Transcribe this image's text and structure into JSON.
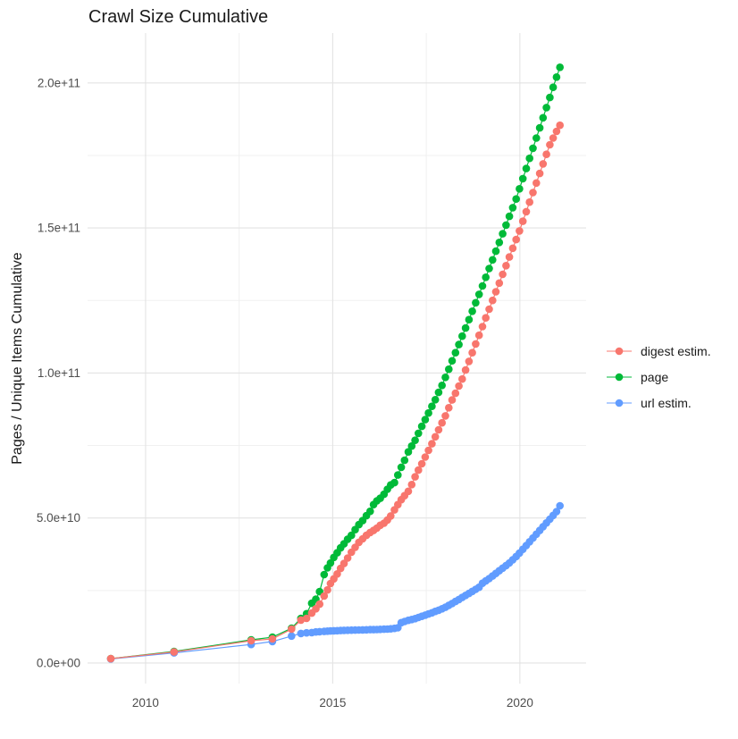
{
  "chart_data": {
    "type": "scatter",
    "title": "Crawl Size Cumulative",
    "xlabel": "",
    "ylabel": "Pages / Unique Items Cumulative",
    "legend_position": "right",
    "grid": true,
    "x_domain": [
      2008.45,
      2021.77
    ],
    "y_domain_e9": [
      -7.1,
      217.2
    ],
    "x_ticks": [
      {
        "value": 2010,
        "label": "2010"
      },
      {
        "value": 2015,
        "label": "2015"
      },
      {
        "value": 2020,
        "label": "2020"
      }
    ],
    "x_minor_ticks": [
      2012.5,
      2017.5
    ],
    "y_ticks": [
      {
        "value_e9": 0,
        "label": "0.0e+00"
      },
      {
        "value_e9": 50,
        "label": "5.0e+10"
      },
      {
        "value_e9": 100,
        "label": "1.0e+11"
      },
      {
        "value_e9": 150,
        "label": "1.5e+11"
      },
      {
        "value_e9": 200,
        "label": "2.0e+11"
      }
    ],
    "y_minor_ticks_e9": [
      25,
      75,
      125,
      175
    ],
    "y_unit": "value_e9 means pages x 1e9",
    "draw_order": [
      "page",
      "url estim.",
      "digest estim."
    ],
    "series": [
      {
        "name": "digest estim.",
        "color": "#F8766D",
        "points_e9": [
          [
            2009.07,
            1.5
          ],
          [
            2010.76,
            3.8
          ],
          [
            2012.82,
            7.7
          ],
          [
            2013.39,
            8.3
          ],
          [
            2013.9,
            11.7
          ],
          [
            2014.15,
            14.8
          ],
          [
            2014.3,
            15.4
          ],
          [
            2014.44,
            17.2
          ],
          [
            2014.55,
            18.7
          ],
          [
            2014.65,
            20.3
          ],
          [
            2014.77,
            23.1
          ],
          [
            2014.86,
            25.2
          ],
          [
            2014.94,
            27.4
          ],
          [
            2015.03,
            29.0
          ],
          [
            2015.12,
            30.7
          ],
          [
            2015.21,
            32.6
          ],
          [
            2015.3,
            34.3
          ],
          [
            2015.4,
            36.2
          ],
          [
            2015.5,
            38.2
          ],
          [
            2015.6,
            39.9
          ],
          [
            2015.7,
            41.6
          ],
          [
            2015.8,
            42.8
          ],
          [
            2015.9,
            44.0
          ],
          [
            2016.0,
            45.0
          ],
          [
            2016.09,
            45.7
          ],
          [
            2016.18,
            46.5
          ],
          [
            2016.27,
            47.5
          ],
          [
            2016.37,
            48.2
          ],
          [
            2016.46,
            49.3
          ],
          [
            2016.55,
            50.7
          ],
          [
            2016.65,
            52.8
          ],
          [
            2016.74,
            54.6
          ],
          [
            2016.83,
            56.3
          ],
          [
            2016.92,
            57.7
          ],
          [
            2017.02,
            59.2
          ],
          [
            2017.11,
            61.5
          ],
          [
            2017.2,
            64.2
          ],
          [
            2017.29,
            66.5
          ],
          [
            2017.38,
            68.7
          ],
          [
            2017.47,
            71.0
          ],
          [
            2017.56,
            73.3
          ],
          [
            2017.65,
            75.6
          ],
          [
            2017.74,
            78.0
          ],
          [
            2017.83,
            80.4
          ],
          [
            2017.92,
            82.8
          ],
          [
            2018.01,
            85.2
          ],
          [
            2018.1,
            88.0
          ],
          [
            2018.19,
            90.7
          ],
          [
            2018.28,
            93.0
          ],
          [
            2018.37,
            95.5
          ],
          [
            2018.46,
            97.9
          ],
          [
            2018.55,
            101.0
          ],
          [
            2018.64,
            104.0
          ],
          [
            2018.73,
            107.0
          ],
          [
            2018.82,
            110.0
          ],
          [
            2018.91,
            113.0
          ],
          [
            2019.0,
            116.0
          ],
          [
            2019.09,
            119.0
          ],
          [
            2019.18,
            122.0
          ],
          [
            2019.27,
            125.0
          ],
          [
            2019.36,
            128.0
          ],
          [
            2019.45,
            131.0
          ],
          [
            2019.54,
            134.0
          ],
          [
            2019.63,
            137.0
          ],
          [
            2019.72,
            140.0
          ],
          [
            2019.81,
            143.0
          ],
          [
            2019.9,
            146.0
          ],
          [
            2019.99,
            149.0
          ],
          [
            2020.08,
            152.3
          ],
          [
            2020.17,
            155.6
          ],
          [
            2020.26,
            158.9
          ],
          [
            2020.35,
            162.2
          ],
          [
            2020.44,
            165.5
          ],
          [
            2020.53,
            168.8
          ],
          [
            2020.62,
            172.1
          ],
          [
            2020.71,
            175.4
          ],
          [
            2020.8,
            178.7
          ],
          [
            2020.89,
            181.0
          ],
          [
            2020.98,
            183.3
          ],
          [
            2021.07,
            185.4
          ]
        ]
      },
      {
        "name": "page",
        "color": "#00BA38",
        "points_e9": [
          [
            2009.07,
            1.5
          ],
          [
            2010.76,
            4.0
          ],
          [
            2012.82,
            8.0
          ],
          [
            2013.39,
            8.9
          ],
          [
            2013.9,
            12.0
          ],
          [
            2014.15,
            15.4
          ],
          [
            2014.3,
            17.0
          ],
          [
            2014.44,
            20.6
          ],
          [
            2014.55,
            22.0
          ],
          [
            2014.65,
            24.6
          ],
          [
            2014.77,
            30.5
          ],
          [
            2014.86,
            32.8
          ],
          [
            2014.94,
            34.5
          ],
          [
            2015.03,
            36.4
          ],
          [
            2015.12,
            38.0
          ],
          [
            2015.21,
            39.7
          ],
          [
            2015.3,
            41.1
          ],
          [
            2015.4,
            42.7
          ],
          [
            2015.5,
            44.0
          ],
          [
            2015.6,
            46.0
          ],
          [
            2015.7,
            47.7
          ],
          [
            2015.8,
            49.1
          ],
          [
            2015.9,
            50.8
          ],
          [
            2016.0,
            52.3
          ],
          [
            2016.09,
            54.6
          ],
          [
            2016.18,
            55.9
          ],
          [
            2016.27,
            56.8
          ],
          [
            2016.37,
            58.2
          ],
          [
            2016.46,
            59.9
          ],
          [
            2016.55,
            61.4
          ],
          [
            2016.65,
            62.2
          ],
          [
            2016.74,
            64.8
          ],
          [
            2016.83,
            67.5
          ],
          [
            2016.92,
            69.9
          ],
          [
            2017.02,
            72.8
          ],
          [
            2017.11,
            74.8
          ],
          [
            2017.2,
            76.8
          ],
          [
            2017.29,
            79.2
          ],
          [
            2017.38,
            81.6
          ],
          [
            2017.47,
            83.9
          ],
          [
            2017.56,
            86.2
          ],
          [
            2017.65,
            88.5
          ],
          [
            2017.74,
            90.8
          ],
          [
            2017.83,
            93.3
          ],
          [
            2017.92,
            95.7
          ],
          [
            2018.01,
            98.5
          ],
          [
            2018.1,
            101.3
          ],
          [
            2018.19,
            104.2
          ],
          [
            2018.28,
            107.0
          ],
          [
            2018.37,
            109.8
          ],
          [
            2018.46,
            112.7
          ],
          [
            2018.55,
            115.5
          ],
          [
            2018.64,
            118.4
          ],
          [
            2018.73,
            121.3
          ],
          [
            2018.82,
            124.2
          ],
          [
            2018.91,
            127.1
          ],
          [
            2019.0,
            130.0
          ],
          [
            2019.09,
            133.0
          ],
          [
            2019.18,
            136.0
          ],
          [
            2019.27,
            139.0
          ],
          [
            2019.36,
            142.0
          ],
          [
            2019.45,
            145.0
          ],
          [
            2019.54,
            148.0
          ],
          [
            2019.63,
            151.0
          ],
          [
            2019.72,
            154.0
          ],
          [
            2019.81,
            157.0
          ],
          [
            2019.9,
            160.0
          ],
          [
            2019.99,
            163.5
          ],
          [
            2020.08,
            167.0
          ],
          [
            2020.17,
            170.5
          ],
          [
            2020.26,
            174.0
          ],
          [
            2020.35,
            177.5
          ],
          [
            2020.44,
            181.0
          ],
          [
            2020.53,
            184.5
          ],
          [
            2020.62,
            188.0
          ],
          [
            2020.71,
            191.5
          ],
          [
            2020.8,
            195.0
          ],
          [
            2020.89,
            198.5
          ],
          [
            2020.98,
            202.0
          ],
          [
            2021.07,
            205.4
          ]
        ]
      },
      {
        "name": "url estim.",
        "color": "#619CFF",
        "points_e9": [
          [
            2009.07,
            1.4
          ],
          [
            2010.76,
            3.5
          ],
          [
            2012.82,
            6.4
          ],
          [
            2013.39,
            7.4
          ],
          [
            2013.9,
            9.3
          ],
          [
            2014.15,
            10.2
          ],
          [
            2014.3,
            10.4
          ],
          [
            2014.44,
            10.5
          ],
          [
            2014.55,
            10.7
          ],
          [
            2014.65,
            10.8
          ],
          [
            2014.77,
            10.9
          ],
          [
            2014.86,
            11.0
          ],
          [
            2014.94,
            11.05
          ],
          [
            2015.03,
            11.1
          ],
          [
            2015.12,
            11.15
          ],
          [
            2015.21,
            11.2
          ],
          [
            2015.3,
            11.25
          ],
          [
            2015.4,
            11.3
          ],
          [
            2015.5,
            11.32
          ],
          [
            2015.6,
            11.35
          ],
          [
            2015.7,
            11.4
          ],
          [
            2015.8,
            11.42
          ],
          [
            2015.9,
            11.45
          ],
          [
            2016.0,
            11.5
          ],
          [
            2016.09,
            11.52
          ],
          [
            2016.18,
            11.55
          ],
          [
            2016.27,
            11.6
          ],
          [
            2016.37,
            11.65
          ],
          [
            2016.46,
            11.7
          ],
          [
            2016.55,
            11.8
          ],
          [
            2016.65,
            11.95
          ],
          [
            2016.74,
            12.15
          ],
          [
            2016.83,
            13.9
          ],
          [
            2016.92,
            14.3
          ],
          [
            2017.02,
            14.7
          ],
          [
            2017.11,
            15.0
          ],
          [
            2017.2,
            15.3
          ],
          [
            2017.29,
            15.7
          ],
          [
            2017.38,
            16.1
          ],
          [
            2017.47,
            16.5
          ],
          [
            2017.56,
            16.9
          ],
          [
            2017.65,
            17.3
          ],
          [
            2017.74,
            17.8
          ],
          [
            2017.83,
            18.2
          ],
          [
            2017.92,
            18.7
          ],
          [
            2018.01,
            19.2
          ],
          [
            2018.1,
            19.9
          ],
          [
            2018.19,
            20.5
          ],
          [
            2018.28,
            21.2
          ],
          [
            2018.37,
            21.9
          ],
          [
            2018.46,
            22.6
          ],
          [
            2018.55,
            23.3
          ],
          [
            2018.64,
            24.0
          ],
          [
            2018.73,
            24.7
          ],
          [
            2018.82,
            25.4
          ],
          [
            2018.91,
            26.1
          ],
          [
            2019.0,
            27.5
          ],
          [
            2019.09,
            28.3
          ],
          [
            2019.18,
            29.1
          ],
          [
            2019.27,
            30.0
          ],
          [
            2019.36,
            30.9
          ],
          [
            2019.45,
            31.8
          ],
          [
            2019.54,
            32.7
          ],
          [
            2019.63,
            33.6
          ],
          [
            2019.72,
            34.5
          ],
          [
            2019.81,
            35.6
          ],
          [
            2019.9,
            36.7
          ],
          [
            2019.99,
            37.9
          ],
          [
            2020.08,
            39.2
          ],
          [
            2020.17,
            40.5
          ],
          [
            2020.26,
            41.8
          ],
          [
            2020.35,
            43.1
          ],
          [
            2020.44,
            44.4
          ],
          [
            2020.53,
            45.7
          ],
          [
            2020.62,
            47.0
          ],
          [
            2020.71,
            48.3
          ],
          [
            2020.8,
            49.6
          ],
          [
            2020.89,
            50.9
          ],
          [
            2020.98,
            52.2
          ],
          [
            2021.07,
            54.2
          ]
        ]
      }
    ]
  },
  "colors": {
    "background": "#FFFFFF",
    "grid_major": "#E3E3E3",
    "grid_minor": "#F0F0F0",
    "tick_label": "#4D4D4D",
    "title_text": "#1A1A1A"
  }
}
